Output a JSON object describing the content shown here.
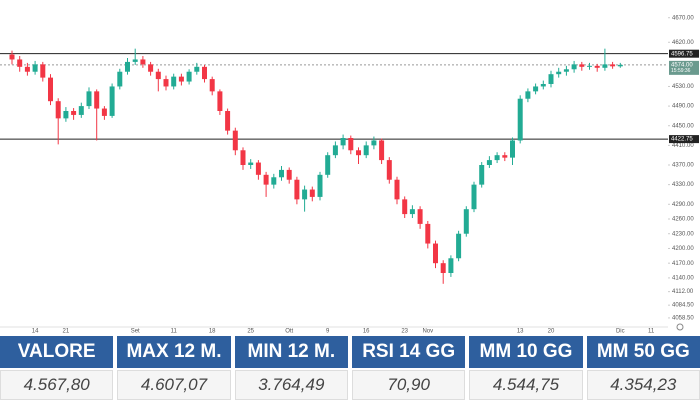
{
  "chart_data": {
    "type": "candlestick",
    "categories": [
      null,
      null,
      null,
      "14",
      null,
      null,
      null,
      "21",
      null,
      null,
      null,
      null,
      null,
      null,
      null,
      null,
      "Set",
      null,
      null,
      null,
      null,
      "11",
      null,
      null,
      null,
      null,
      "18",
      null,
      null,
      null,
      null,
      "25",
      null,
      null,
      null,
      null,
      "Ott",
      null,
      null,
      null,
      null,
      "9",
      null,
      null,
      null,
      null,
      "16",
      null,
      null,
      null,
      null,
      "23",
      null,
      null,
      "Nov",
      null,
      null,
      null,
      null,
      null,
      null,
      null,
      null,
      null,
      null,
      null,
      "13",
      null,
      null,
      null,
      "20",
      null,
      null,
      null,
      null,
      null,
      null,
      null,
      null,
      "Dic",
      null,
      null,
      null,
      "11"
    ],
    "open": [
      4595,
      4585,
      4570,
      4560,
      4575,
      4548,
      4500,
      4465,
      4480,
      4472,
      4490,
      4520,
      4485,
      4470,
      4530,
      4560,
      4580,
      4585,
      4575,
      4560,
      4545,
      4530,
      4550,
      4540,
      4560,
      4570,
      4545,
      4520,
      4480,
      4440,
      4400,
      4370,
      4375,
      4350,
      4330,
      4345,
      4360,
      4340,
      4300,
      4320,
      4305,
      4350,
      4390,
      4410,
      4425,
      4400,
      4390,
      4410,
      4420,
      4380,
      4340,
      4300,
      4270,
      4280,
      4250,
      4210,
      4170,
      4150,
      4180,
      4230,
      4280,
      4330,
      4370,
      4380,
      4390,
      4385,
      4420,
      4505,
      4520,
      4530,
      4535,
      4555,
      4560,
      4565,
      4575,
      4570,
      4572,
      4568,
      4575,
      4571,
      null,
      null,
      null,
      null
    ],
    "high": [
      4603,
      4592,
      4578,
      4582,
      4580,
      4555,
      4506,
      4488,
      4486,
      4497,
      4528,
      4524,
      4490,
      4536,
      4566,
      4588,
      4607,
      4592,
      4580,
      4566,
      4552,
      4556,
      4556,
      4565,
      4578,
      4574,
      4550,
      4524,
      4485,
      4446,
      4406,
      4382,
      4380,
      4356,
      4352,
      4368,
      4365,
      4346,
      4328,
      4326,
      4356,
      4396,
      4418,
      4432,
      4430,
      4406,
      4418,
      4428,
      4424,
      4386,
      4346,
      4306,
      4288,
      4286,
      4256,
      4216,
      4176,
      4186,
      4236,
      4286,
      4336,
      4376,
      4388,
      4396,
      4396,
      4426,
      4512,
      4526,
      4536,
      4542,
      4562,
      4568,
      4572,
      4582,
      4580,
      4578,
      4576,
      4607,
      4580,
      4578,
      null,
      null,
      null,
      null
    ],
    "low": [
      4575,
      4560,
      4552,
      4554,
      4540,
      4492,
      4412,
      4458,
      4462,
      4466,
      4484,
      4420,
      4462,
      4466,
      4524,
      4554,
      4574,
      4568,
      4552,
      4520,
      4522,
      4524,
      4532,
      4534,
      4554,
      4538,
      4512,
      4472,
      4432,
      4390,
      4360,
      4362,
      4340,
      4305,
      4322,
      4338,
      4332,
      4290,
      4275,
      4296,
      4298,
      4344,
      4384,
      4402,
      4392,
      4372,
      4384,
      4402,
      4372,
      4332,
      4290,
      4262,
      4262,
      4240,
      4200,
      4160,
      4128,
      4142,
      4174,
      4224,
      4274,
      4324,
      4364,
      4374,
      4378,
      4370,
      4414,
      4498,
      4514,
      4524,
      4528,
      4548,
      4552,
      4558,
      4562,
      4564,
      4560,
      4562,
      4566,
      4568,
      null,
      null,
      null,
      null
    ],
    "close": [
      4585,
      4570,
      4560,
      4575,
      4548,
      4500,
      4465,
      4480,
      4472,
      4490,
      4520,
      4485,
      4470,
      4530,
      4560,
      4580,
      4585,
      4575,
      4560,
      4545,
      4530,
      4550,
      4540,
      4560,
      4570,
      4545,
      4520,
      4480,
      4440,
      4400,
      4370,
      4375,
      4350,
      4330,
      4345,
      4360,
      4340,
      4300,
      4320,
      4305,
      4350,
      4390,
      4410,
      4425,
      4400,
      4390,
      4410,
      4420,
      4380,
      4340,
      4300,
      4270,
      4280,
      4250,
      4210,
      4170,
      4150,
      4180,
      4230,
      4280,
      4330,
      4370,
      4380,
      4390,
      4385,
      4420,
      4505,
      4520,
      4530,
      4535,
      4555,
      4560,
      4565,
      4575,
      4570,
      4572,
      4568,
      4575,
      4571,
      4574,
      null,
      null,
      null,
      null
    ],
    "up_color": "#22ab94",
    "down_color": "#f23645",
    "ylim": [
      4040,
      4700
    ],
    "yticks": [
      {
        "value": 4670,
        "label": "4670.00"
      },
      {
        "value": 4620,
        "label": "4620.00"
      },
      {
        "value": 4530,
        "label": "4530.00"
      },
      {
        "value": 4490,
        "label": "4490.00"
      },
      {
        "value": 4450,
        "label": "4450.00"
      },
      {
        "value": 4410,
        "label": "4410.00"
      },
      {
        "value": 4370,
        "label": "4370.00"
      },
      {
        "value": 4330,
        "label": "4330.00"
      },
      {
        "value": 4290,
        "label": "4290.00"
      },
      {
        "value": 4260,
        "label": "4260.00"
      },
      {
        "value": 4230,
        "label": "4230.00"
      },
      {
        "value": 4200,
        "label": "4200.00"
      },
      {
        "value": 4170,
        "label": "4170.00"
      },
      {
        "value": 4140,
        "label": "4140.00"
      },
      {
        "value": 4112,
        "label": "4112.00"
      },
      {
        "value": 4084.5,
        "label": "4084.50"
      },
      {
        "value": 4058.5,
        "label": "4058.50"
      }
    ],
    "price_lines": [
      {
        "value": 4596.75,
        "label": "4596.75"
      },
      {
        "value": 4422.75,
        "label": "4422.75"
      }
    ],
    "last_price": {
      "value": 4574,
      "label": "4574.00",
      "time": "15:59:36"
    },
    "grid": false
  },
  "table": {
    "headers": [
      "VALORE",
      "MAX 12 M.",
      "MIN 12 M.",
      "RSI 14 GG",
      "MM 10 GG",
      "MM 50 GG"
    ],
    "values": [
      "4.567,80",
      "4.607,07",
      "3.764,49",
      "70,90",
      "4.544,75",
      "4.354,23"
    ]
  }
}
